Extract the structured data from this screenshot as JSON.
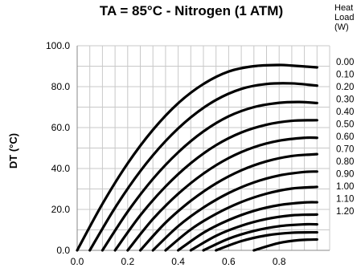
{
  "chart_data": {
    "type": "line",
    "title": "TA = 85°C - Nitrogen (1 ATM)",
    "xlabel": "",
    "ylabel": "DT (°C)",
    "xlim": [
      0,
      1.0
    ],
    "ylim": [
      0,
      100
    ],
    "x_ticks": [
      "0.0",
      "0.2",
      "0.4",
      "0.6",
      "0.8"
    ],
    "y_ticks": [
      "0.0",
      "20.0",
      "40.0",
      "60.0",
      "80.0",
      "100.0"
    ],
    "grid": true,
    "legend_title": [
      "Heat",
      "Load",
      "(W)"
    ],
    "legend_position": "right",
    "series": [
      {
        "name": "0.00",
        "x": [
          0.0,
          0.1,
          0.2,
          0.3,
          0.4,
          0.5,
          0.6,
          0.7,
          0.8,
          0.85,
          0.95
        ],
        "y": [
          0.0,
          22.7,
          42.5,
          58.9,
          71.9,
          81.3,
          87.4,
          90.0,
          90.6,
          90.3,
          89.4
        ]
      },
      {
        "name": "0.10",
        "x": [
          0.05,
          0.15,
          0.25,
          0.35,
          0.45,
          0.55,
          0.65,
          0.75,
          0.85,
          0.95
        ],
        "y": [
          0.0,
          20.8,
          38.7,
          53.4,
          65.0,
          73.5,
          78.9,
          81.3,
          81.6,
          80.5
        ]
      },
      {
        "name": "0.20",
        "x": [
          0.1,
          0.2,
          0.3,
          0.4,
          0.5,
          0.6,
          0.7,
          0.8,
          0.88,
          0.95
        ],
        "y": [
          0.0,
          18.9,
          34.9,
          47.9,
          58.1,
          65.5,
          70.0,
          72.1,
          72.5,
          72.0
        ]
      },
      {
        "name": "0.30",
        "x": [
          0.15,
          0.25,
          0.35,
          0.45,
          0.55,
          0.65,
          0.75,
          0.85,
          0.95
        ],
        "y": [
          0.0,
          17.1,
          31.2,
          42.6,
          51.4,
          57.6,
          61.4,
          63.3,
          63.6
        ]
      },
      {
        "name": "0.40",
        "x": [
          0.2,
          0.3,
          0.4,
          0.5,
          0.6,
          0.7,
          0.8,
          0.9,
          0.95
        ],
        "y": [
          0.0,
          15.3,
          27.6,
          37.5,
          45.1,
          50.4,
          53.6,
          55.0,
          55.0
        ]
      },
      {
        "name": "0.50",
        "x": [
          0.25,
          0.35,
          0.45,
          0.55,
          0.65,
          0.75,
          0.85,
          0.95
        ],
        "y": [
          0.0,
          13.5,
          24.2,
          32.7,
          39.1,
          43.5,
          46.1,
          47.0
        ]
      },
      {
        "name": "0.60",
        "x": [
          0.3,
          0.4,
          0.5,
          0.6,
          0.7,
          0.8,
          0.9,
          0.95
        ],
        "y": [
          0.0,
          11.8,
          20.9,
          28.0,
          33.2,
          36.6,
          38.3,
          38.5
        ]
      },
      {
        "name": "0.70",
        "x": [
          0.35,
          0.45,
          0.55,
          0.65,
          0.75,
          0.85,
          0.95
        ],
        "y": [
          0.0,
          10.2,
          17.8,
          23.6,
          27.7,
          30.2,
          31.0
        ]
      },
      {
        "name": "0.80",
        "x": [
          0.4,
          0.5,
          0.6,
          0.7,
          0.8,
          0.9,
          0.95
        ],
        "y": [
          0.0,
          8.6,
          14.8,
          19.3,
          22.1,
          23.4,
          23.5
        ]
      },
      {
        "name": "0.90",
        "x": [
          0.45,
          0.55,
          0.65,
          0.75,
          0.85,
          0.95
        ],
        "y": [
          0.0,
          7.1,
          12.0,
          15.3,
          17.1,
          17.5
        ]
      },
      {
        "name": "1.00",
        "x": [
          0.5,
          0.6,
          0.7,
          0.8,
          0.9,
          0.95
        ],
        "y": [
          0.0,
          5.7,
          9.5,
          11.8,
          12.7,
          12.7
        ]
      },
      {
        "name": "1.10",
        "x": [
          0.55,
          0.65,
          0.75,
          0.85,
          0.95
        ],
        "y": [
          0.0,
          4.5,
          7.3,
          8.6,
          8.8
        ]
      },
      {
        "name": "1.20",
        "x": [
          0.7,
          0.8,
          0.88,
          0.95
        ],
        "y": [
          0.0,
          3.6,
          5.0,
          5.3
        ]
      }
    ]
  }
}
